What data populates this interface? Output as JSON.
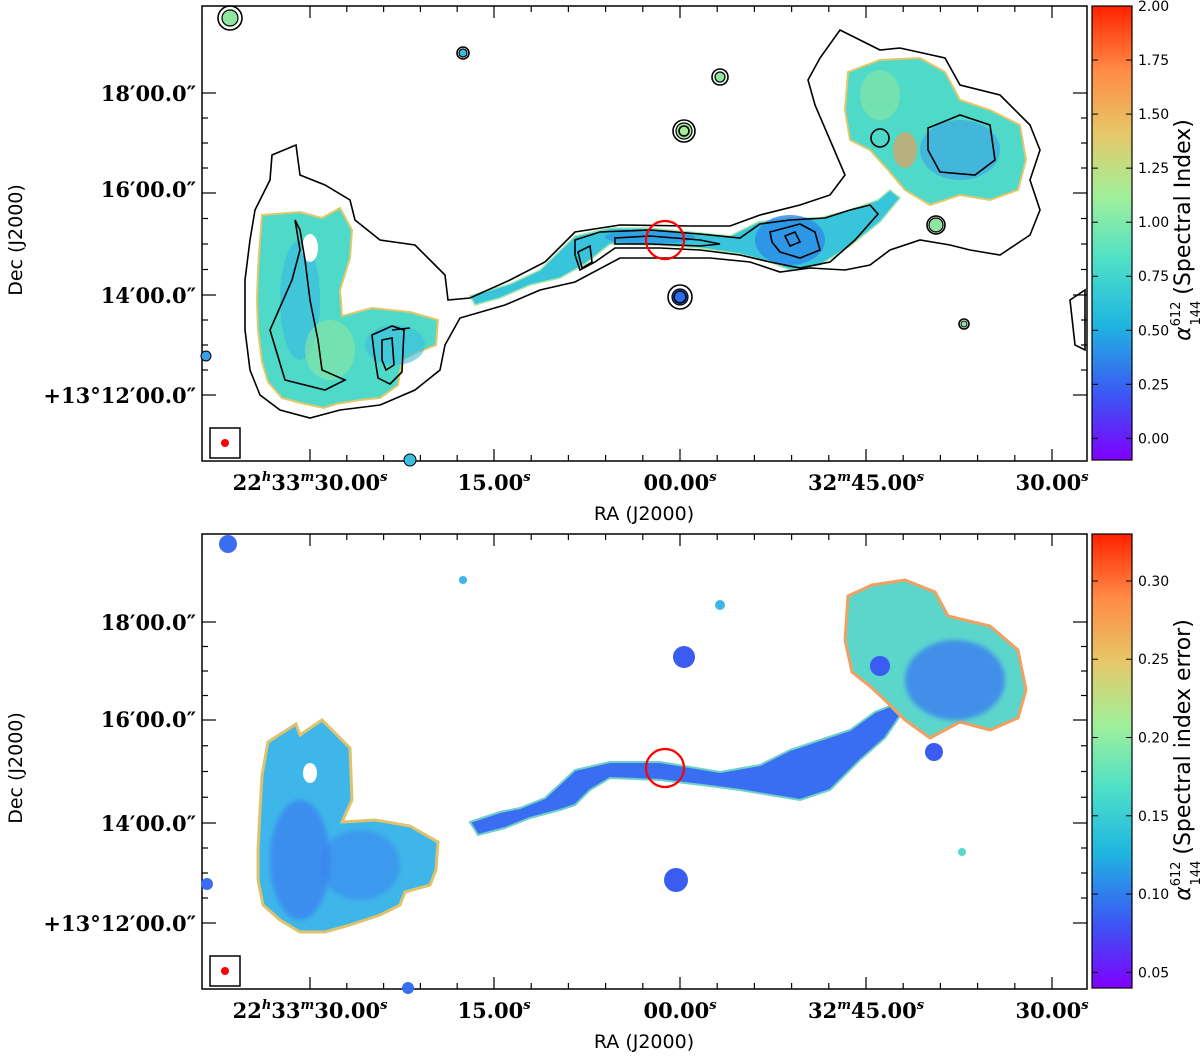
{
  "chart_data": [
    {
      "type": "heatmap",
      "title": "",
      "xlabel": "RA (J2000)",
      "ylabel": "Dec (J2000)",
      "x_ticks": [
        {
          "label": "22h33m30.00s",
          "h": "22",
          "m": "33",
          "s": "30.00"
        },
        {
          "label": "15.00s",
          "s": "15.00"
        },
        {
          "label": "00.00s",
          "s": "00.00"
        },
        {
          "label": "32m45.00s",
          "m": "32",
          "s": "45.00"
        },
        {
          "label": "30.00s",
          "s": "30.00"
        }
      ],
      "y_ticks": [
        {
          "label": "18′00.0″",
          "main": "18′00.0″"
        },
        {
          "label": "16′00.0″",
          "main": "16′00.0″"
        },
        {
          "label": "14′00.0″",
          "main": "14′00.0″"
        },
        {
          "label": "+13°12′00.0″",
          "main": "+13°12′00.0″"
        }
      ],
      "colorbar": {
        "title": "α₁₄₄⁶¹² (Spectral Index)",
        "title_main": "α",
        "title_sup": "612",
        "title_sub": "144",
        "title_rest": "(Spectral Index)",
        "range": [
          -0.1,
          2.0
        ],
        "ticks": [
          "0.00",
          "0.25",
          "0.50",
          "0.75",
          "1.00",
          "1.25",
          "1.50",
          "1.75",
          "2.00"
        ],
        "tick_values": [
          0.0,
          0.25,
          0.5,
          0.75,
          1.0,
          1.25,
          1.5,
          1.75,
          2.0
        ]
      },
      "contours": true,
      "markers": {
        "host_circle": "red circle",
        "beam": "red dot"
      }
    },
    {
      "type": "heatmap",
      "title": "",
      "xlabel": "RA (J2000)",
      "ylabel": "Dec (J2000)",
      "x_ticks": [
        {
          "label": "22h33m30.00s",
          "h": "22",
          "m": "33",
          "s": "30.00"
        },
        {
          "label": "15.00s",
          "s": "15.00"
        },
        {
          "label": "00.00s",
          "s": "00.00"
        },
        {
          "label": "32m45.00s",
          "m": "32",
          "s": "45.00"
        },
        {
          "label": "30.00s",
          "s": "30.00"
        }
      ],
      "y_ticks": [
        {
          "label": "18′00.0″",
          "main": "18′00.0″"
        },
        {
          "label": "16′00.0″",
          "main": "16′00.0″"
        },
        {
          "label": "14′00.0″",
          "main": "14′00.0″"
        },
        {
          "label": "+13°12′00.0″",
          "main": "+13°12′00.0″"
        }
      ],
      "colorbar": {
        "title": "α₁₄₄⁶¹² (Spectral index error)",
        "title_main": "α",
        "title_sup": "612",
        "title_sub": "144",
        "title_rest": "(Spectral index error)",
        "range": [
          0.04,
          0.33
        ],
        "ticks": [
          "0.05",
          "0.10",
          "0.15",
          "0.20",
          "0.25",
          "0.30"
        ],
        "tick_values": [
          0.05,
          0.1,
          0.15,
          0.2,
          0.25,
          0.3
        ]
      },
      "contours": false,
      "markers": {
        "host_circle": "red circle",
        "beam": "red dot"
      }
    }
  ],
  "colors": {
    "colormap": [
      "#7f00ff",
      "#3c55f5",
      "#1fb7e0",
      "#4ee0c8",
      "#a0f09a",
      "#e6c768",
      "#ff8a45",
      "#ff2200"
    ],
    "marker": "#ff0000"
  }
}
